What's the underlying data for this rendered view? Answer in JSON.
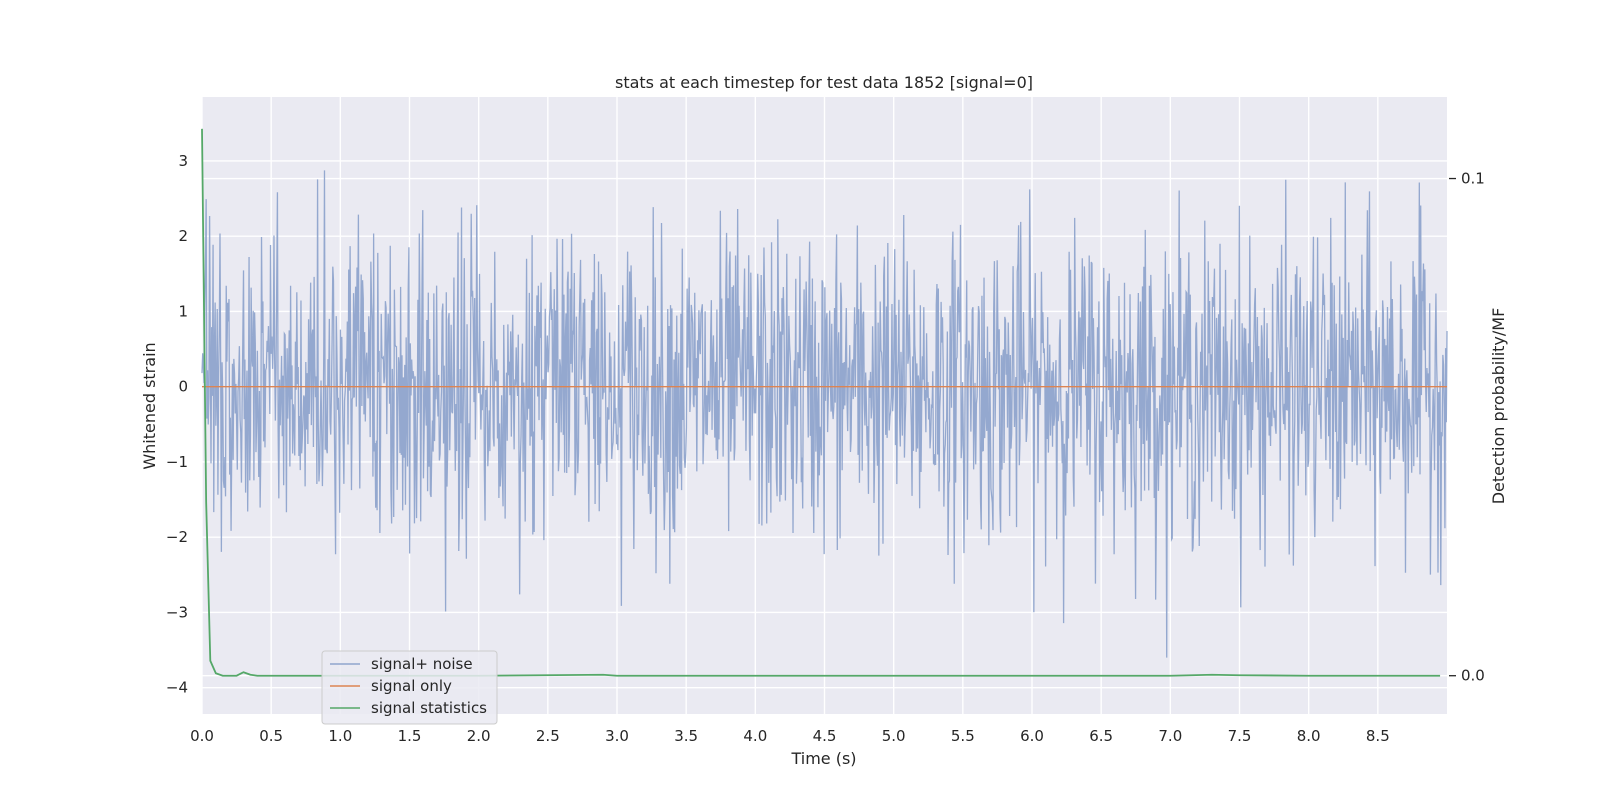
{
  "chart_data": {
    "type": "line",
    "title": "stats at each timestep for test data 1852 [signal=0]",
    "xlabel": "Time (s)",
    "ylabel": "Whitened strain",
    "y2label": "Detection probability/MF",
    "xlim": [
      0,
      9.0
    ],
    "ylim": [
      -4.35,
      3.85
    ],
    "y2lim": [
      -0.0077,
      0.1164
    ],
    "xticks": [
      0.0,
      0.5,
      1.0,
      1.5,
      2.0,
      2.5,
      3.0,
      3.5,
      4.0,
      4.5,
      5.0,
      5.5,
      6.0,
      6.5,
      7.0,
      7.5,
      8.0,
      8.5
    ],
    "xtick_labels": [
      "0.0",
      "0.5",
      "1.0",
      "1.5",
      "2.0",
      "2.5",
      "3.0",
      "3.5",
      "4.0",
      "4.5",
      "5.0",
      "5.5",
      "6.0",
      "6.5",
      "7.0",
      "7.5",
      "8.0",
      "8.5"
    ],
    "yticks": [
      -4,
      -3,
      -2,
      -1,
      0,
      1,
      2,
      3
    ],
    "ytick_labels": [
      "−4",
      "−3",
      "−2",
      "−1",
      "0",
      "1",
      "2",
      "3"
    ],
    "y2ticks": [
      0.0,
      0.1
    ],
    "y2tick_labels": [
      "0.0",
      "0.1"
    ],
    "grid": true,
    "legend_position": "lower-left",
    "series": [
      {
        "name": "signal+ noise",
        "color": "#8fa4cc",
        "axis": "left",
        "noise": {
          "n_points": 1800,
          "sigma": 1.0,
          "min": -3.6,
          "max": 3.45
        }
      },
      {
        "name": "signal only",
        "color": "#dd8452",
        "axis": "left",
        "x": [
          0.0,
          9.0
        ],
        "y": [
          0.0,
          0.0
        ]
      },
      {
        "name": "signal statistics",
        "color": "#55a868",
        "axis": "right",
        "x": [
          0.0,
          0.03,
          0.06,
          0.1,
          0.15,
          0.2,
          0.25,
          0.3,
          0.35,
          0.4,
          0.5,
          1.0,
          2.0,
          2.9,
          3.0,
          4.0,
          5.0,
          6.0,
          7.0,
          7.3,
          7.5,
          8.0,
          8.95
        ],
        "y": [
          0.11,
          0.035,
          0.003,
          0.0005,
          0.0,
          0.0,
          0.0,
          0.0007,
          0.0002,
          0.0,
          0.0,
          0.0,
          0.0,
          0.0002,
          0.0,
          0.0,
          0.0,
          0.0,
          0.0,
          0.0002,
          0.0001,
          0.0,
          0.0
        ]
      }
    ]
  }
}
